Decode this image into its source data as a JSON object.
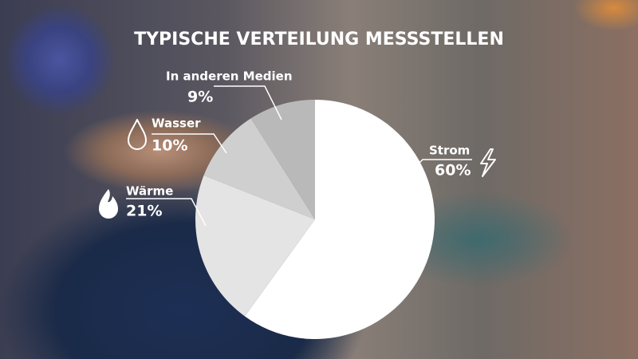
{
  "chart_data": {
    "type": "pie",
    "title": "TYPISCHE VERTEILUNG MESSSTELLEN",
    "categories": [
      "Strom",
      "Wärme",
      "Wasser",
      "In anderen Medien"
    ],
    "values": [
      60,
      21,
      10,
      9
    ],
    "value_labels": [
      "60%",
      "21%",
      "10%",
      "9%"
    ],
    "colors": [
      "#ffffff",
      "#e4e4e4",
      "#cfcfcf",
      "#b9b9b9"
    ]
  }
}
